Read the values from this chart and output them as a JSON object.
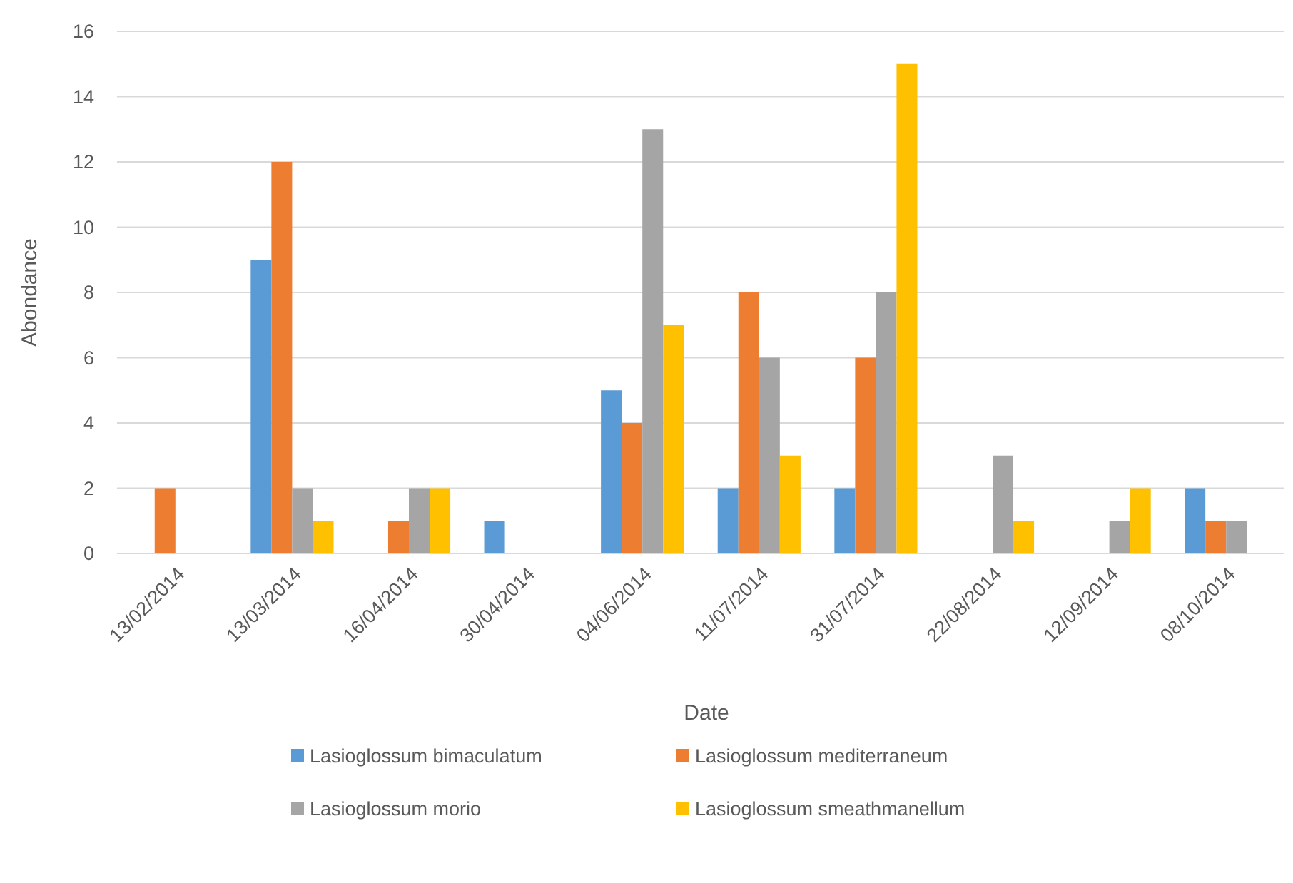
{
  "chart_data": {
    "type": "bar",
    "categories": [
      "13/02/2014",
      "13/03/2014",
      "16/04/2014",
      "30/04/2014",
      "04/06/2014",
      "11/07/2014",
      "31/07/2014",
      "22/08/2014",
      "12/09/2014",
      "08/10/2014"
    ],
    "series": [
      {
        "name": "Lasioglossum bimaculatum",
        "color": "#5b9bd5",
        "values": [
          0,
          9,
          0,
          1,
          5,
          2,
          2,
          0,
          0,
          2
        ]
      },
      {
        "name": "Lasioglossum mediterraneum",
        "color": "#ed7d31",
        "values": [
          2,
          12,
          1,
          0,
          4,
          8,
          6,
          0,
          0,
          1
        ]
      },
      {
        "name": "Lasioglossum morio",
        "color": "#a5a5a5",
        "values": [
          0,
          2,
          2,
          0,
          13,
          6,
          8,
          3,
          1,
          1
        ]
      },
      {
        "name": "Lasioglossum smeathmanellum",
        "color": "#ffc000",
        "values": [
          0,
          1,
          2,
          0,
          7,
          3,
          15,
          1,
          2,
          0
        ]
      }
    ],
    "xlabel": "Date",
    "ylabel": "Abondance",
    "ylim": [
      0,
      16
    ],
    "yticks": [
      0,
      2,
      4,
      6,
      8,
      10,
      12,
      14,
      16
    ],
    "grid": "y",
    "legend": "bottom"
  }
}
